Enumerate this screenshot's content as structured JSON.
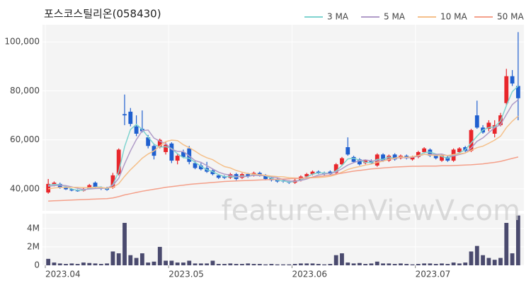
{
  "watermark": "feature.enViewV.com",
  "chart_data": [
    {
      "type": "candlestick",
      "title": "포스코스틸리온(058430)",
      "up_color": "#e8262b",
      "down_color": "#1f5fcf",
      "open": [
        38500,
        41500,
        42000,
        40500,
        39800,
        39300,
        39200,
        40000,
        42500,
        40500,
        40200,
        40500,
        46000,
        70500,
        71500,
        65500,
        64500,
        61000,
        57500,
        57000,
        55000,
        58500,
        51500,
        55000,
        56500,
        50500,
        49500,
        48500,
        47500,
        45500,
        45000,
        44500,
        46000,
        44500,
        46000,
        45500,
        46500,
        45500,
        44500,
        44000,
        43500,
        43000,
        42500,
        43500,
        45000,
        46000,
        47000,
        46500,
        47000,
        46500,
        50000,
        57000,
        53000,
        52000,
        50500,
        51500,
        49500,
        54000,
        51500,
        54000,
        52500,
        53500,
        52000,
        53000,
        55000,
        56000,
        53500,
        51500,
        53000,
        51500,
        55000,
        57000,
        55500,
        70000,
        65000,
        64500,
        62500,
        66000,
        75000,
        86000,
        82000
      ],
      "high": [
        44000,
        43000,
        42500,
        41000,
        40200,
        39800,
        40500,
        42000,
        43000,
        41000,
        40800,
        46500,
        56500,
        78500,
        73000,
        70000,
        72000,
        62000,
        58500,
        60500,
        59000,
        59000,
        54500,
        56000,
        57500,
        51500,
        50500,
        51000,
        48000,
        46000,
        45500,
        46500,
        46500,
        46500,
        46500,
        47000,
        47000,
        46000,
        45000,
        44500,
        44000,
        43500,
        44000,
        45500,
        46500,
        47500,
        47500,
        47000,
        47500,
        50500,
        53000,
        61000,
        53500,
        52500,
        52000,
        52000,
        54500,
        54500,
        54000,
        54500,
        54000,
        54000,
        53500,
        55500,
        57000,
        56500,
        54000,
        54000,
        53500,
        56500,
        57000,
        57500,
        64500,
        76000,
        66000,
        68000,
        68000,
        71000,
        89000,
        88500,
        104000
      ],
      "low": [
        38000,
        41000,
        40000,
        39500,
        39000,
        38800,
        38900,
        39800,
        40000,
        39500,
        39200,
        40000,
        45500,
        66000,
        65500,
        61500,
        63000,
        56500,
        52000,
        56500,
        54000,
        50500,
        50000,
        52500,
        50000,
        48000,
        47500,
        46500,
        45500,
        44000,
        44000,
        44000,
        43500,
        44000,
        44500,
        45000,
        45000,
        43500,
        43000,
        42500,
        42500,
        42000,
        42000,
        43000,
        44500,
        45500,
        46000,
        45500,
        45500,
        46000,
        49500,
        53500,
        50500,
        49500,
        50000,
        50000,
        49000,
        51000,
        51000,
        51500,
        52000,
        52000,
        51500,
        52500,
        54500,
        53000,
        52000,
        51000,
        51000,
        51000,
        54500,
        55000,
        55000,
        64500,
        62500,
        63500,
        61000,
        65500,
        74000,
        82000,
        68000
      ],
      "close": [
        42000,
        42500,
        40500,
        39800,
        39300,
        39000,
        40000,
        41500,
        40500,
        40000,
        39600,
        45500,
        56000,
        70000,
        66500,
        62500,
        63500,
        57500,
        53500,
        60000,
        58000,
        51500,
        53500,
        53000,
        51000,
        48500,
        48000,
        47000,
        46000,
        44500,
        44500,
        46000,
        44000,
        46000,
        45000,
        46500,
        45500,
        44000,
        43500,
        43000,
        43000,
        42500,
        43500,
        45000,
        46000,
        47000,
        46500,
        46000,
        46000,
        50000,
        52500,
        54000,
        51000,
        50000,
        51500,
        50500,
        54000,
        51500,
        53500,
        52000,
        53500,
        52500,
        53000,
        55000,
        56500,
        53500,
        52500,
        53500,
        51500,
        56000,
        56500,
        55500,
        64000,
        65000,
        63000,
        67000,
        66000,
        70000,
        86000,
        83000,
        77000
      ],
      "series": [
        {
          "name": "3 MA",
          "color": "#7fd3cf",
          "values": [
            41500,
            41800,
            41700,
            40900,
            39900,
            39400,
            39400,
            40200,
            40700,
            40700,
            40000,
            41700,
            47000,
            57200,
            64200,
            66300,
            64200,
            61200,
            58200,
            57000,
            57200,
            56500,
            54300,
            52700,
            52500,
            50800,
            49200,
            47800,
            47000,
            45800,
            45000,
            45000,
            44800,
            45300,
            45000,
            45800,
            45700,
            45300,
            44300,
            43500,
            43200,
            42800,
            43000,
            43700,
            44800,
            46000,
            46500,
            46500,
            46200,
            47300,
            49500,
            52200,
            52500,
            51700,
            50800,
            50700,
            52000,
            52000,
            53000,
            52300,
            53000,
            52700,
            53000,
            53500,
            54800,
            55000,
            54200,
            53200,
            52500,
            53700,
            54700,
            56000,
            58700,
            61500,
            64000,
            65000,
            65300,
            67700,
            74000,
            79700,
            82000
          ]
        },
        {
          "name": "5 MA",
          "color": "#b09cc8",
          "values": [
            41000,
            41300,
            41500,
            41300,
            40800,
            40200,
            39700,
            39900,
            40100,
            40200,
            40300,
            41400,
            44300,
            50200,
            55500,
            60100,
            63700,
            64000,
            60700,
            59400,
            58500,
            56100,
            55300,
            55200,
            53400,
            51500,
            50800,
            49500,
            48100,
            46800,
            46000,
            45600,
            45000,
            45000,
            45100,
            45500,
            45400,
            45400,
            44900,
            44500,
            43800,
            43200,
            43100,
            43400,
            44000,
            44800,
            45600,
            46100,
            46300,
            46900,
            48200,
            49700,
            50700,
            51500,
            51800,
            51400,
            51400,
            51500,
            52200,
            52300,
            52900,
            52600,
            52900,
            53300,
            54100,
            54100,
            54100,
            54200,
            53500,
            53400,
            54000,
            54600,
            56700,
            59400,
            60800,
            62900,
            65000,
            66200,
            70400,
            74400,
            76400
          ]
        },
        {
          "name": "10 MA",
          "color": "#f5c08a",
          "values": [
            40000,
            40300,
            40500,
            40600,
            40600,
            40600,
            40500,
            40500,
            40600,
            40500,
            40300,
            40600,
            42100,
            45100,
            47800,
            50100,
            52500,
            54200,
            55500,
            57500,
            59300,
            59900,
            59700,
            58000,
            56800,
            55400,
            53800,
            52700,
            51900,
            50400,
            49100,
            48500,
            47500,
            46800,
            46200,
            46000,
            45800,
            45500,
            45200,
            45000,
            44900,
            44500,
            44400,
            44300,
            44400,
            44500,
            44600,
            44800,
            45100,
            45800,
            46800,
            47900,
            48600,
            49100,
            49700,
            50100,
            50800,
            51300,
            52000,
            52600,
            53000,
            52900,
            53100,
            53600,
            54100,
            53800,
            53600,
            53700,
            53600,
            54000,
            54300,
            54600,
            55700,
            56800,
            57400,
            58600,
            59900,
            61500,
            65000,
            67600,
            69700
          ]
        },
        {
          "name": "50 MA",
          "color": "#f4a08a",
          "values": [
            35000,
            35100,
            35200,
            35300,
            35400,
            35500,
            35600,
            35700,
            35800,
            35900,
            36000,
            36300,
            36800,
            37500,
            38000,
            38500,
            39000,
            39400,
            39800,
            40200,
            40600,
            40900,
            41200,
            41500,
            41800,
            42000,
            42200,
            42400,
            42600,
            42800,
            43000,
            43100,
            43200,
            43300,
            43400,
            43500,
            43600,
            43700,
            43800,
            43900,
            44000,
            44100,
            44200,
            44300,
            44500,
            44700,
            45000,
            45300,
            45600,
            46000,
            46400,
            46800,
            47200,
            47500,
            47800,
            48100,
            48300,
            48500,
            48700,
            48900,
            49000,
            49100,
            49200,
            49200,
            49300,
            49300,
            49300,
            49400,
            49400,
            49500,
            49600,
            49700,
            49800,
            50000,
            50200,
            50500,
            50800,
            51200,
            51800,
            52400,
            53000
          ]
        }
      ],
      "ylim": [
        31000,
        107000
      ],
      "yticks": [
        {
          "value": 40000,
          "label": "40,000"
        },
        {
          "value": 60000,
          "label": "60,000"
        },
        {
          "value": 80000,
          "label": "80,000"
        },
        {
          "value": 100000,
          "label": "100,000"
        }
      ],
      "grid": true
    },
    {
      "type": "bar",
      "color": "#4a4a6e",
      "categories": [
        "2023.04",
        null,
        null,
        null,
        null,
        null,
        null,
        null,
        null,
        null,
        null,
        null,
        null,
        null,
        null,
        null,
        null,
        null,
        null,
        null,
        null,
        "2023.05",
        null,
        null,
        null,
        null,
        null,
        null,
        null,
        null,
        null,
        null,
        null,
        null,
        null,
        null,
        null,
        null,
        null,
        null,
        null,
        null,
        "2023.06",
        null,
        null,
        null,
        null,
        null,
        null,
        null,
        null,
        null,
        null,
        null,
        null,
        null,
        null,
        null,
        null,
        null,
        null,
        null,
        null,
        "2023.07",
        null,
        null,
        null,
        null,
        null,
        null,
        null,
        null,
        null,
        null,
        null,
        null,
        null,
        null,
        null,
        null,
        null
      ],
      "values": [
        700000,
        300000,
        200000,
        150000,
        200000,
        150000,
        300000,
        250000,
        200000,
        150000,
        200000,
        1500000,
        1300000,
        4600000,
        1100000,
        800000,
        1300000,
        300000,
        400000,
        2000000,
        500000,
        500000,
        300000,
        300000,
        500000,
        200000,
        200000,
        200000,
        500000,
        150000,
        150000,
        200000,
        150000,
        150000,
        200000,
        150000,
        150000,
        100000,
        150000,
        100000,
        100000,
        100000,
        150000,
        200000,
        200000,
        200000,
        150000,
        100000,
        150000,
        1100000,
        1300000,
        300000,
        200000,
        250000,
        150000,
        200000,
        400000,
        200000,
        200000,
        150000,
        200000,
        150000,
        100000,
        150000,
        200000,
        200000,
        150000,
        200000,
        150000,
        300000,
        200000,
        300000,
        1500000,
        2100000,
        1100000,
        800000,
        600000,
        800000,
        4600000,
        1300000,
        5400000
      ],
      "ylim": [
        0,
        5600000
      ],
      "yticks": [
        0,
        {
          "value": 2000000,
          "label": "2M"
        },
        {
          "value": 4000000,
          "label": "4M"
        }
      ],
      "grid": true
    }
  ]
}
